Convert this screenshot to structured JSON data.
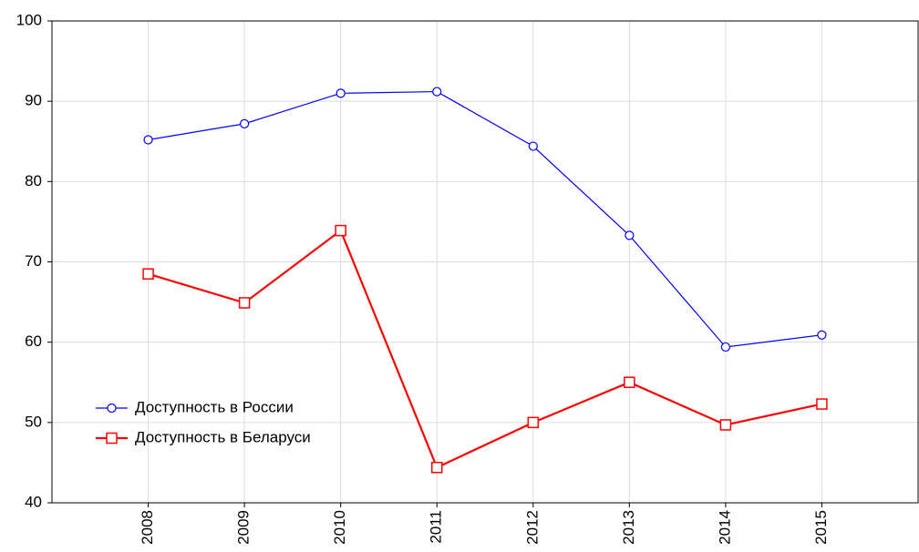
{
  "chart_data": {
    "type": "line",
    "x": [
      2008,
      2009,
      2010,
      2011,
      2012,
      2013,
      2014,
      2015
    ],
    "series": [
      {
        "name": "Доступность в России",
        "color": "#0000ff",
        "marker": "circle",
        "values": [
          85.2,
          87.2,
          91.0,
          91.2,
          84.4,
          73.3,
          59.4,
          60.9
        ]
      },
      {
        "name": "Доступность в Беларуси",
        "color": "#ff0000",
        "marker": "square",
        "values": [
          68.5,
          64.9,
          73.9,
          44.4,
          50.0,
          55.0,
          49.7,
          52.3
        ]
      }
    ],
    "xlim": [
      2007,
      2016
    ],
    "xticks": [
      2008,
      2009,
      2010,
      2011,
      2012,
      2013,
      2014,
      2015
    ],
    "ylim": [
      40,
      100
    ],
    "yticks": [
      40,
      50,
      60,
      70,
      80,
      90,
      100
    ],
    "grid": true,
    "legend": "lower left"
  }
}
